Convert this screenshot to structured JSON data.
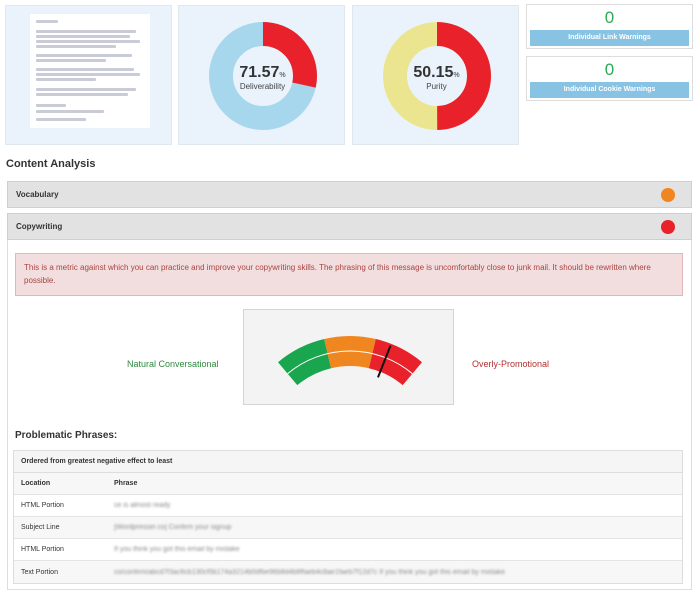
{
  "summary": {
    "deliverability": {
      "value": "71.57",
      "unit": "%",
      "label": "Deliverability",
      "fraction": 0.7157,
      "primary_color": "#a7d7ec",
      "secondary_color": "#e8212a"
    },
    "purity": {
      "value": "50.15",
      "unit": "%",
      "label": "Purity",
      "fraction": 0.5015,
      "primary_color": "#ece58f",
      "secondary_color": "#e8212a"
    }
  },
  "warnings": {
    "link": {
      "count": "0",
      "label": "Individual Link Warnings"
    },
    "cookie": {
      "count": "0",
      "label": "Individual Cookie Warnings"
    }
  },
  "content_analysis": {
    "title": "Content Analysis",
    "sections": [
      {
        "label": "Vocabulary",
        "status_color": "#f0861f"
      },
      {
        "label": "Copywriting",
        "status_color": "#e8212a"
      }
    ]
  },
  "copywriting": {
    "alert": "This is a metric against which you can practice and improve your copywriting skills. The phrasing of this message is uncomfortably close to junk mail. It should be rewritten where possible.",
    "gauge": {
      "left_label": "Natural Conversational",
      "right_label": "Overly-Promotional",
      "needle_fraction": 0.77,
      "colors": [
        "#1aa64e",
        "#f0861f",
        "#e8212a"
      ]
    }
  },
  "problematic": {
    "title": "Problematic Phrases:",
    "caption": "Ordered from greatest negative effect to least",
    "columns": [
      "Location",
      "Phrase"
    ],
    "rows": [
      {
        "location": "HTML Portion",
        "phrase": "ce is almost ready"
      },
      {
        "location": "Subject Line",
        "phrase": "[Wordpresser.co] Confirm your signup"
      },
      {
        "location": "HTML Portion",
        "phrase": "If you think you got this email by mistake"
      },
      {
        "location": "Text Portion",
        "phrase": "co/confirm/abcd7f3ac6cb130cf5b174a3214b0dfbe96b8d4b8ffaeb4c8ae1faeb7f12d7c If you think you got this email by mistake"
      }
    ]
  }
}
